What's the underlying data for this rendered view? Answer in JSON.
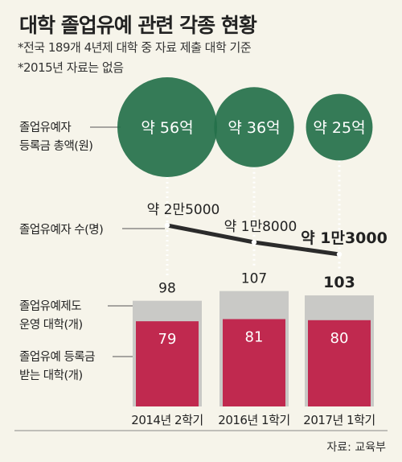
{
  "title": "대학 졸업유예 관련 각종 현황",
  "notes": [
    "*전국 189개 4년제 대학 중 자료 제출 대학 기준",
    "*2015년 자료는 없음"
  ],
  "row_labels": {
    "fee_line1": "졸업유예자",
    "fee_line2": "등록금 총액(원)",
    "students": "졸업유예자 수(명)",
    "system_line1": "졸업유예제도",
    "system_line2": "운영 대학(개)",
    "fee_univ_line1": "졸업유예 등록금",
    "fee_univ_line2": "받는 대학(개)"
  },
  "source": "자료: 교육부",
  "colors": {
    "bubble": "#24704a",
    "bar_total": "#c9c9c6",
    "bar_fee": "#c0294f",
    "line": "#2b2b2b",
    "background": "#f6f4ea"
  },
  "chart_data": {
    "type": "bar",
    "categories": [
      "2014년 2학기",
      "2016년 1학기",
      "2017년 1학기"
    ],
    "series": [
      {
        "values": [
          98,
          107,
          103
        ]
      },
      {
        "values": [
          79,
          81,
          80
        ]
      }
    ],
    "fee_totals": {
      "values": [
        56,
        36,
        25
      ],
      "labels": [
        "약 56억",
        "약 36억",
        "약 25억"
      ]
    },
    "students": {
      "values": [
        25000,
        18000,
        13000
      ],
      "labels": [
        "약 2만5000",
        "약 1만8000",
        "약 1만3000"
      ]
    },
    "ylim": [
      0,
      110
    ]
  }
}
